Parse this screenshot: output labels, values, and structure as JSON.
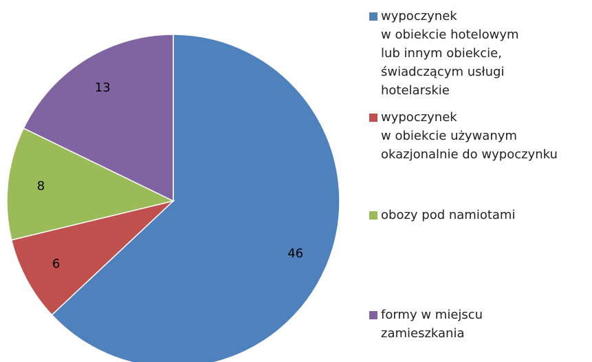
{
  "chart_data": {
    "type": "pie",
    "series": [
      {
        "name": "wypoczynek\nw obiekcie hotelowym\nlub innym obiekcie,\n świadczącym  usługi\nhotelarskie",
        "color": "#4f81bd",
        "values": [
          46
        ]
      },
      {
        "name": "wypoczynek\nw obiekcie używanym\nokazjonalnie do wypoczynku",
        "color": "#c0504d",
        "values": [
          6
        ]
      },
      {
        "name": "obozy pod namiotami",
        "color": "#9bbb59",
        "values": [
          8
        ]
      },
      {
        "name": "formy w miejscu\nzamieszkania",
        "color": "#8064a2",
        "values": [
          13
        ]
      }
    ]
  }
}
